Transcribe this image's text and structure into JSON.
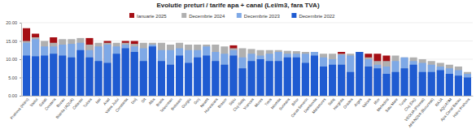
{
  "chart_data": {
    "type": "bar",
    "title": "Evolutie preturi / tarife apa + canal (Lei/m3, fara TVA)",
    "categories": [
      "Prahova (Hidro)",
      "Vaslui",
      "Galati",
      "Covasna",
      "Buzau",
      "Bistrita (AQUA)",
      "Calarasi",
      "Tulcea",
      "Iasi",
      "Arad",
      "Valea Jiului",
      "Constanta",
      "Dolj",
      "Olt",
      "Alba",
      "Braila",
      "Teleorman",
      "Botosani",
      "Giurgiu",
      "Gorj",
      "Neamt",
      "Hunedoara",
      "Brasov",
      "Sibiu",
      "Cluj-Salaj",
      "Vrancea",
      "Mures",
      "Timis",
      "Ialomita",
      "Suceava",
      "Bihor",
      "Caras-Severin",
      "Dambovita",
      "Maramures",
      "Salaj",
      "Harghita",
      "Oradea",
      "Arges",
      "Valcea",
      "Ilfov",
      "Mehedinti",
      "Satu Mare",
      "Turda",
      "Cluj (Dej)",
      "VEOLIA (Ploiesti)",
      "APA NOVA (Bucuresti)",
      "RAJA",
      "AQUATIM",
      "Apa Canal Bacau",
      "Hidro Prahova"
    ],
    "series": [
      {
        "name": "Ianuarie 2025",
        "color": "#a50f15",
        "values": [
          18.5,
          17,
          null,
          16,
          null,
          null,
          null,
          15.8,
          null,
          15,
          null,
          15,
          15,
          null,
          null,
          null,
          null,
          null,
          null,
          null,
          null,
          null,
          null,
          13.8,
          null,
          null,
          null,
          null,
          null,
          null,
          null,
          null,
          null,
          null,
          null,
          12,
          null,
          null,
          11.5,
          11.5,
          11,
          null,
          null,
          null,
          null,
          null,
          null,
          null,
          null,
          null
        ]
      },
      {
        "name": "Decembrie 2024",
        "color": "#b0b0b0",
        "values": [
          15,
          16,
          15,
          14.5,
          15.5,
          15.5,
          15.8,
          14,
          14.5,
          14.5,
          14.5,
          14.5,
          14.2,
          14.5,
          14.5,
          14.5,
          14,
          14.5,
          14,
          14,
          14,
          14,
          13.5,
          13,
          13,
          12.8,
          12.5,
          12.5,
          12.5,
          12.3,
          12.2,
          12,
          12,
          11.5,
          11.5,
          11.5,
          11.5,
          12,
          10.5,
          9.5,
          9.5,
          11,
          10.5,
          10.5,
          10,
          9.5,
          9,
          8.5,
          8,
          6.5
        ]
      },
      {
        "name": "Decembrie 2023",
        "color": "#7fa9e6",
        "values": [
          14.5,
          15.5,
          13.5,
          13.5,
          14,
          14.2,
          14.5,
          12.5,
          13.5,
          14,
          13.5,
          14,
          13.5,
          13,
          14,
          12.5,
          12.5,
          13,
          12.5,
          12.5,
          13.5,
          12,
          11.5,
          12.5,
          10.5,
          11.5,
          11,
          11.5,
          12,
          11.5,
          11.5,
          11.5,
          12,
          10.5,
          10,
          11.2,
          11,
          12,
          10,
          8.5,
          8,
          9.5,
          10.5,
          9.5,
          9,
          8.5,
          8,
          7.5,
          7,
          6
        ]
      },
      {
        "name": "Decembrie 2022",
        "color": "#1f5bd1",
        "values": [
          11,
          10.8,
          11,
          11.5,
          11,
          10.5,
          12.5,
          10.5,
          9.5,
          9,
          11.5,
          13,
          12,
          9.5,
          13.5,
          9.5,
          8.5,
          11,
          9,
          10.5,
          11,
          9.5,
          8.5,
          11,
          7.5,
          9.5,
          10,
          9.5,
          9.5,
          10.5,
          10.5,
          9,
          11,
          8,
          8.5,
          8.5,
          6.5,
          12,
          8,
          7.5,
          6,
          6.5,
          7.5,
          8.5,
          6.5,
          6.5,
          7,
          6,
          5.5,
          5
        ]
      }
    ],
    "ylim": [
      0,
      20
    ],
    "yticks": [
      {
        "value": 0,
        "label": "0.00"
      },
      {
        "value": 5,
        "label": "5.00"
      },
      {
        "value": 10,
        "label": "10.00"
      },
      {
        "value": 15,
        "label": "15.00"
      },
      {
        "value": 20,
        "label": "20.00"
      }
    ],
    "grid": true,
    "legend": "top"
  }
}
